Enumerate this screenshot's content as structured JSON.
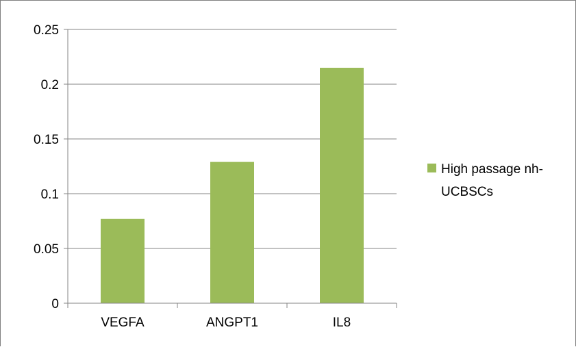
{
  "chart_data": {
    "type": "bar",
    "categories": [
      "VEGFA",
      "ANGPT1",
      "IL8"
    ],
    "series": [
      {
        "name": "High passage nh-UCBSCs",
        "values": [
          0.077,
          0.129,
          0.215
        ]
      }
    ],
    "y_ticks": [
      "0",
      "0.05",
      "0.1",
      "0.15",
      "0.2",
      "0.25"
    ],
    "ylim": [
      0,
      0.25
    ],
    "grid": true,
    "legend": {
      "placement": "right",
      "lines": [
        "High passage nh-",
        "UCBSCs"
      ]
    },
    "colors": {
      "bar": "#9bbb59",
      "grid": "#868686",
      "axis": "#868686"
    }
  }
}
